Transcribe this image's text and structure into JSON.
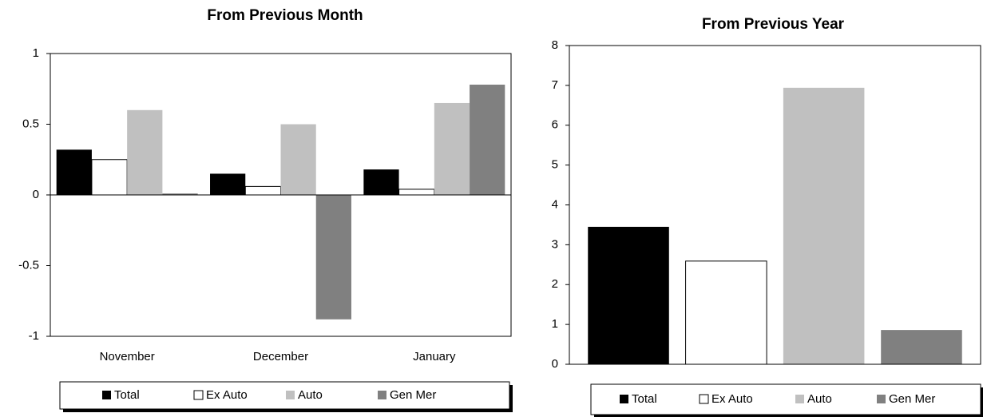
{
  "chart_data": [
    {
      "type": "bar",
      "title": "From Previous Month",
      "categories": [
        "November",
        "December",
        "January"
      ],
      "series": [
        {
          "name": "Total",
          "color": "#000000",
          "values": [
            0.32,
            0.15,
            0.18
          ]
        },
        {
          "name": "Ex Auto",
          "color": "#ffffff",
          "values": [
            0.25,
            0.06,
            0.04
          ]
        },
        {
          "name": "Auto",
          "color": "#c0c0c0",
          "values": [
            0.6,
            0.5,
            0.65
          ]
        },
        {
          "name": "Gen Mer",
          "color": "#808080",
          "values": [
            0.01,
            -0.88,
            0.78
          ]
        }
      ],
      "ylim": [
        -1,
        1
      ],
      "yticks": [
        -1,
        -0.5,
        0,
        0.5,
        1
      ],
      "grid": false,
      "legend": "bottom"
    },
    {
      "type": "bar",
      "title": "From Previous Year",
      "categories": [
        null
      ],
      "series": [
        {
          "name": "Total",
          "color": "#000000",
          "values": [
            3.45
          ]
        },
        {
          "name": "Ex Auto",
          "color": "#ffffff",
          "values": [
            2.59
          ]
        },
        {
          "name": "Auto",
          "color": "#c0c0c0",
          "values": [
            6.94
          ]
        },
        {
          "name": "Gen Mer",
          "color": "#808080",
          "values": [
            0.86
          ]
        }
      ],
      "ylim": [
        0,
        8
      ],
      "yticks": [
        0,
        1,
        2,
        3,
        4,
        5,
        6,
        7,
        8
      ],
      "grid": false,
      "legend": "bottom"
    }
  ]
}
